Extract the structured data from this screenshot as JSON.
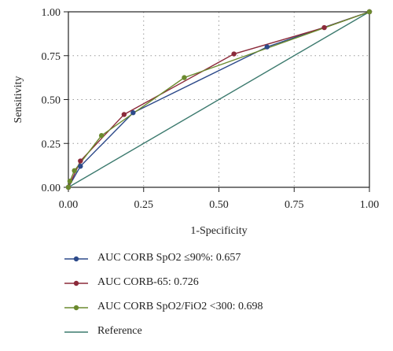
{
  "chart_data": {
    "type": "line",
    "xlabel": "1-Specificity",
    "ylabel": "Sensitivity",
    "xlim": [
      0,
      1
    ],
    "ylim": [
      0,
      1
    ],
    "x_ticks": [
      "0.00",
      "0.25",
      "0.50",
      "0.75",
      "1.00"
    ],
    "y_ticks": [
      "0.00",
      "0.25",
      "0.50",
      "0.75",
      "1.00"
    ],
    "grid": "dotted",
    "legend_position": "bottom",
    "series": [
      {
        "name": "AUC CORB SpO2 ≤90%: 0.657",
        "color": "#2d4a8a",
        "marker": true,
        "points": [
          [
            0,
            0
          ],
          [
            0.04,
            0.12
          ],
          [
            0.215,
            0.425
          ],
          [
            0.66,
            0.8
          ],
          [
            1,
            1
          ]
        ]
      },
      {
        "name": "AUC CORB-65: 0.726",
        "color": "#8b2a3a",
        "marker": true,
        "points": [
          [
            0,
            0
          ],
          [
            0.04,
            0.15
          ],
          [
            0.185,
            0.415
          ],
          [
            0.55,
            0.76
          ],
          [
            0.85,
            0.91
          ],
          [
            1,
            1
          ]
        ]
      },
      {
        "name": "AUC CORB SpO2/FiO2 <300: 0.698",
        "color": "#6b8a2e",
        "marker": true,
        "points": [
          [
            0,
            0
          ],
          [
            0.005,
            0.035
          ],
          [
            0.02,
            0.095
          ],
          [
            0.11,
            0.295
          ],
          [
            0.385,
            0.625
          ],
          [
            1,
            1
          ]
        ]
      },
      {
        "name": "Reference",
        "color": "#3c7a6e",
        "marker": false,
        "points": [
          [
            0,
            0
          ],
          [
            1,
            1
          ]
        ]
      }
    ]
  }
}
